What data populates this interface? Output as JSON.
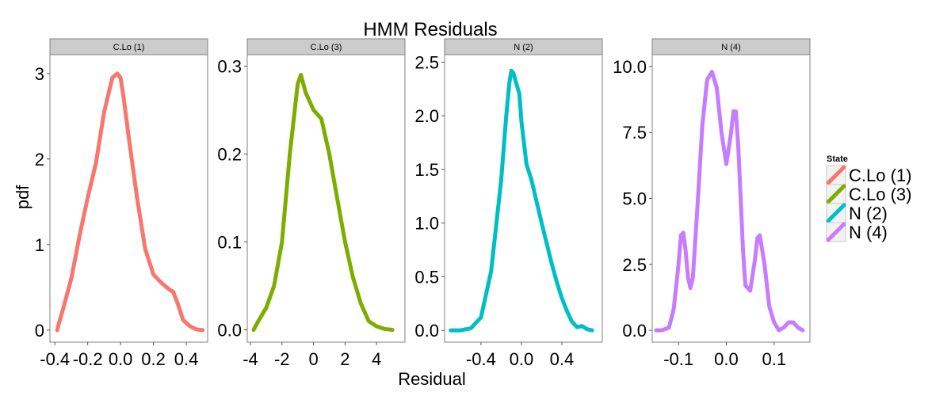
{
  "chart_data": {
    "type": "line",
    "title": "HMM Residuals",
    "xlabel": "Residual",
    "ylabel": "pdf",
    "legend": {
      "title": "State",
      "position": "right",
      "entries": [
        {
          "label": "C.Lo (1)",
          "color": "#F8766D"
        },
        {
          "label": "C.Lo (3)",
          "color": "#7CAE00"
        },
        {
          "label": "N (2)",
          "color": "#00BFC4"
        },
        {
          "label": "N (4)",
          "color": "#C77CFF"
        }
      ]
    },
    "grid": false,
    "panels": [
      {
        "strip": "C.Lo (1)",
        "color": "#F8766D",
        "xlim": [
          -0.43,
          0.53
        ],
        "ylim": [
          -0.14,
          3.22
        ],
        "xticks": [
          -0.4,
          -0.2,
          0.0,
          0.2,
          0.4
        ],
        "xtick_labels": [
          "-0.4",
          "-0.2",
          "0.0",
          "0.2",
          "0.4"
        ],
        "yticks": [
          0,
          1,
          2,
          3
        ],
        "ytick_labels": [
          "0",
          "1",
          "2",
          "3"
        ],
        "x": [
          -0.385,
          -0.38,
          -0.35,
          -0.3,
          -0.25,
          -0.2,
          -0.15,
          -0.1,
          -0.05,
          -0.02,
          0.0,
          0.02,
          0.05,
          0.1,
          0.15,
          0.2,
          0.25,
          0.3,
          0.32,
          0.35,
          0.38,
          0.42,
          0.46,
          0.5
        ],
        "y": [
          0.0,
          0.05,
          0.25,
          0.6,
          1.1,
          1.55,
          1.95,
          2.55,
          2.95,
          3.0,
          2.95,
          2.7,
          2.25,
          1.55,
          0.95,
          0.65,
          0.55,
          0.47,
          0.45,
          0.3,
          0.12,
          0.05,
          0.01,
          0.0
        ]
      },
      {
        "strip": "C.Lo (3)",
        "color": "#7CAE00",
        "xlim": [
          -4.2,
          5.8
        ],
        "ylim": [
          -0.014,
          0.313
        ],
        "xticks": [
          -4,
          -2,
          0,
          2,
          4
        ],
        "xtick_labels": [
          "-4",
          "-2",
          "0",
          "2",
          "4"
        ],
        "yticks": [
          0.0,
          0.1,
          0.2,
          0.3
        ],
        "ytick_labels": [
          "0.0",
          "0.1",
          "0.2",
          "0.3"
        ],
        "x": [
          -3.8,
          -3.5,
          -3.0,
          -2.5,
          -2.0,
          -1.5,
          -1.0,
          -0.8,
          -0.5,
          0.0,
          0.5,
          1.0,
          1.5,
          2.0,
          2.5,
          3.0,
          3.5,
          4.0,
          4.5,
          5.0
        ],
        "y": [
          0.0,
          0.01,
          0.025,
          0.05,
          0.1,
          0.2,
          0.28,
          0.29,
          0.27,
          0.25,
          0.24,
          0.2,
          0.15,
          0.1,
          0.06,
          0.03,
          0.01,
          0.004,
          0.001,
          0.0
        ]
      },
      {
        "strip": "N (2)",
        "color": "#00BFC4",
        "xlim": [
          -0.76,
          0.8
        ],
        "ylim": [
          -0.11,
          2.57
        ],
        "xticks": [
          -0.4,
          0.0,
          0.4
        ],
        "xtick_labels": [
          "-0.4",
          "0.0",
          "0.4"
        ],
        "yticks": [
          0.0,
          0.5,
          1.0,
          1.5,
          2.0,
          2.5
        ],
        "ytick_labels": [
          "0.0",
          "0.5",
          "1.0",
          "1.5",
          "2.0",
          "2.5"
        ],
        "x": [
          -0.7,
          -0.6,
          -0.5,
          -0.4,
          -0.3,
          -0.2,
          -0.15,
          -0.12,
          -0.1,
          -0.08,
          -0.05,
          -0.02,
          0.0,
          0.05,
          0.1,
          0.15,
          0.2,
          0.3,
          0.35,
          0.4,
          0.45,
          0.5,
          0.55,
          0.6,
          0.65,
          0.7
        ],
        "y": [
          0.0,
          0.0,
          0.02,
          0.12,
          0.55,
          1.4,
          2.0,
          2.3,
          2.42,
          2.4,
          2.3,
          2.2,
          1.95,
          1.55,
          1.4,
          1.2,
          1.0,
          0.62,
          0.45,
          0.3,
          0.18,
          0.08,
          0.03,
          0.04,
          0.01,
          0.0
        ]
      },
      {
        "strip": "N (4)",
        "color": "#C77CFF",
        "xlim": [
          -0.155,
          0.175
        ],
        "ylim": [
          -0.45,
          10.45
        ],
        "xticks": [
          -0.1,
          0.0,
          0.1
        ],
        "xtick_labels": [
          "-0.1",
          "0.0",
          "0.1"
        ],
        "yticks": [
          0.0,
          2.5,
          5.0,
          7.5,
          10.0
        ],
        "ytick_labels": [
          "0.0",
          "2.5",
          "5.0",
          "7.5",
          "10.0"
        ],
        "x": [
          -0.147,
          -0.135,
          -0.12,
          -0.11,
          -0.1,
          -0.095,
          -0.09,
          -0.085,
          -0.08,
          -0.075,
          -0.07,
          -0.06,
          -0.05,
          -0.04,
          -0.03,
          -0.02,
          -0.01,
          0.0,
          0.01,
          0.015,
          0.02,
          0.025,
          0.03,
          0.035,
          0.04,
          0.05,
          0.06,
          0.065,
          0.07,
          0.08,
          0.09,
          0.1,
          0.11,
          0.12,
          0.13,
          0.14,
          0.15,
          0.16
        ],
        "y": [
          0.0,
          0.0,
          0.1,
          0.8,
          2.5,
          3.6,
          3.7,
          3.0,
          2.0,
          1.6,
          2.0,
          4.8,
          7.8,
          9.5,
          9.8,
          9.2,
          7.5,
          6.3,
          7.5,
          8.3,
          8.3,
          7.0,
          5.0,
          3.0,
          1.7,
          1.5,
          2.7,
          3.5,
          3.6,
          2.5,
          0.9,
          0.3,
          0.0,
          0.1,
          0.3,
          0.3,
          0.1,
          0.0
        ]
      }
    ]
  }
}
